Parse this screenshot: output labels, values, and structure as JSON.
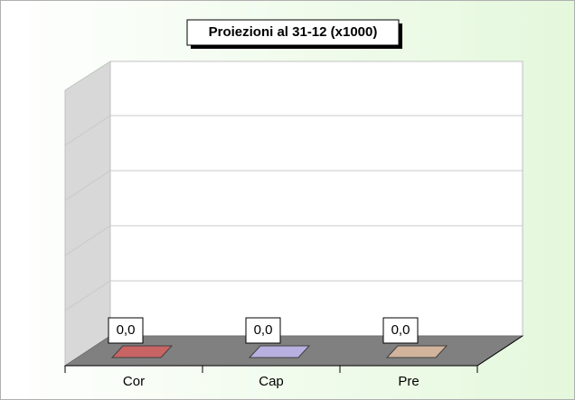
{
  "chart_data": {
    "type": "bar",
    "title": "Proiezioni al 31-12 (x1000)",
    "categories": [
      "Cor",
      "Cap",
      "Pre"
    ],
    "values": [
      0,
      0,
      0
    ],
    "value_labels": [
      "0,0",
      "0,0",
      "0,0"
    ],
    "colors": [
      "#c86464",
      "#b8b0e0",
      "#d2b49c"
    ]
  }
}
